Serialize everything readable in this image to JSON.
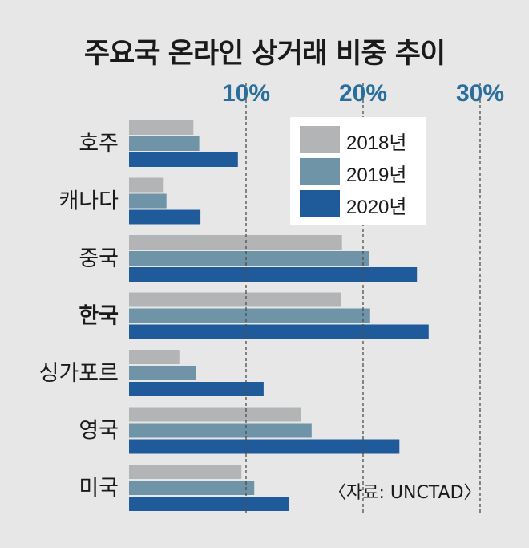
{
  "title": "주요국 온라인 상거래 비중 추이",
  "source": "〈자료: UNCTAD〉",
  "colors": {
    "background": "#e7e7e8",
    "gridline": "#4d4d4d",
    "tick_label": "#2a6e9c"
  },
  "chart_data": {
    "type": "bar",
    "orientation": "horizontal",
    "title": "주요국 온라인 상거래 비중 추이",
    "categories": [
      "호주",
      "캐나다",
      "중국",
      "한국",
      "싱가포르",
      "영국",
      "미국"
    ],
    "series": [
      {
        "name": "2018년",
        "color": "#b3b4b6",
        "values": [
          5.5,
          2.9,
          18.2,
          18.1,
          4.3,
          14.7,
          9.6
        ]
      },
      {
        "name": "2019년",
        "color": "#6f94a8",
        "values": [
          6.0,
          3.2,
          20.5,
          20.6,
          5.7,
          15.6,
          10.7
        ]
      },
      {
        "name": "2020년",
        "color": "#1f5b9a",
        "values": [
          9.3,
          6.1,
          24.6,
          25.6,
          11.5,
          23.1,
          13.7
        ]
      }
    ],
    "xticks": [
      "10%",
      "20%",
      "30%"
    ],
    "xtick_values": [
      10,
      20,
      30
    ],
    "xlim": [
      0,
      30
    ],
    "grid": "dashed vertical",
    "legend": "top-right"
  }
}
